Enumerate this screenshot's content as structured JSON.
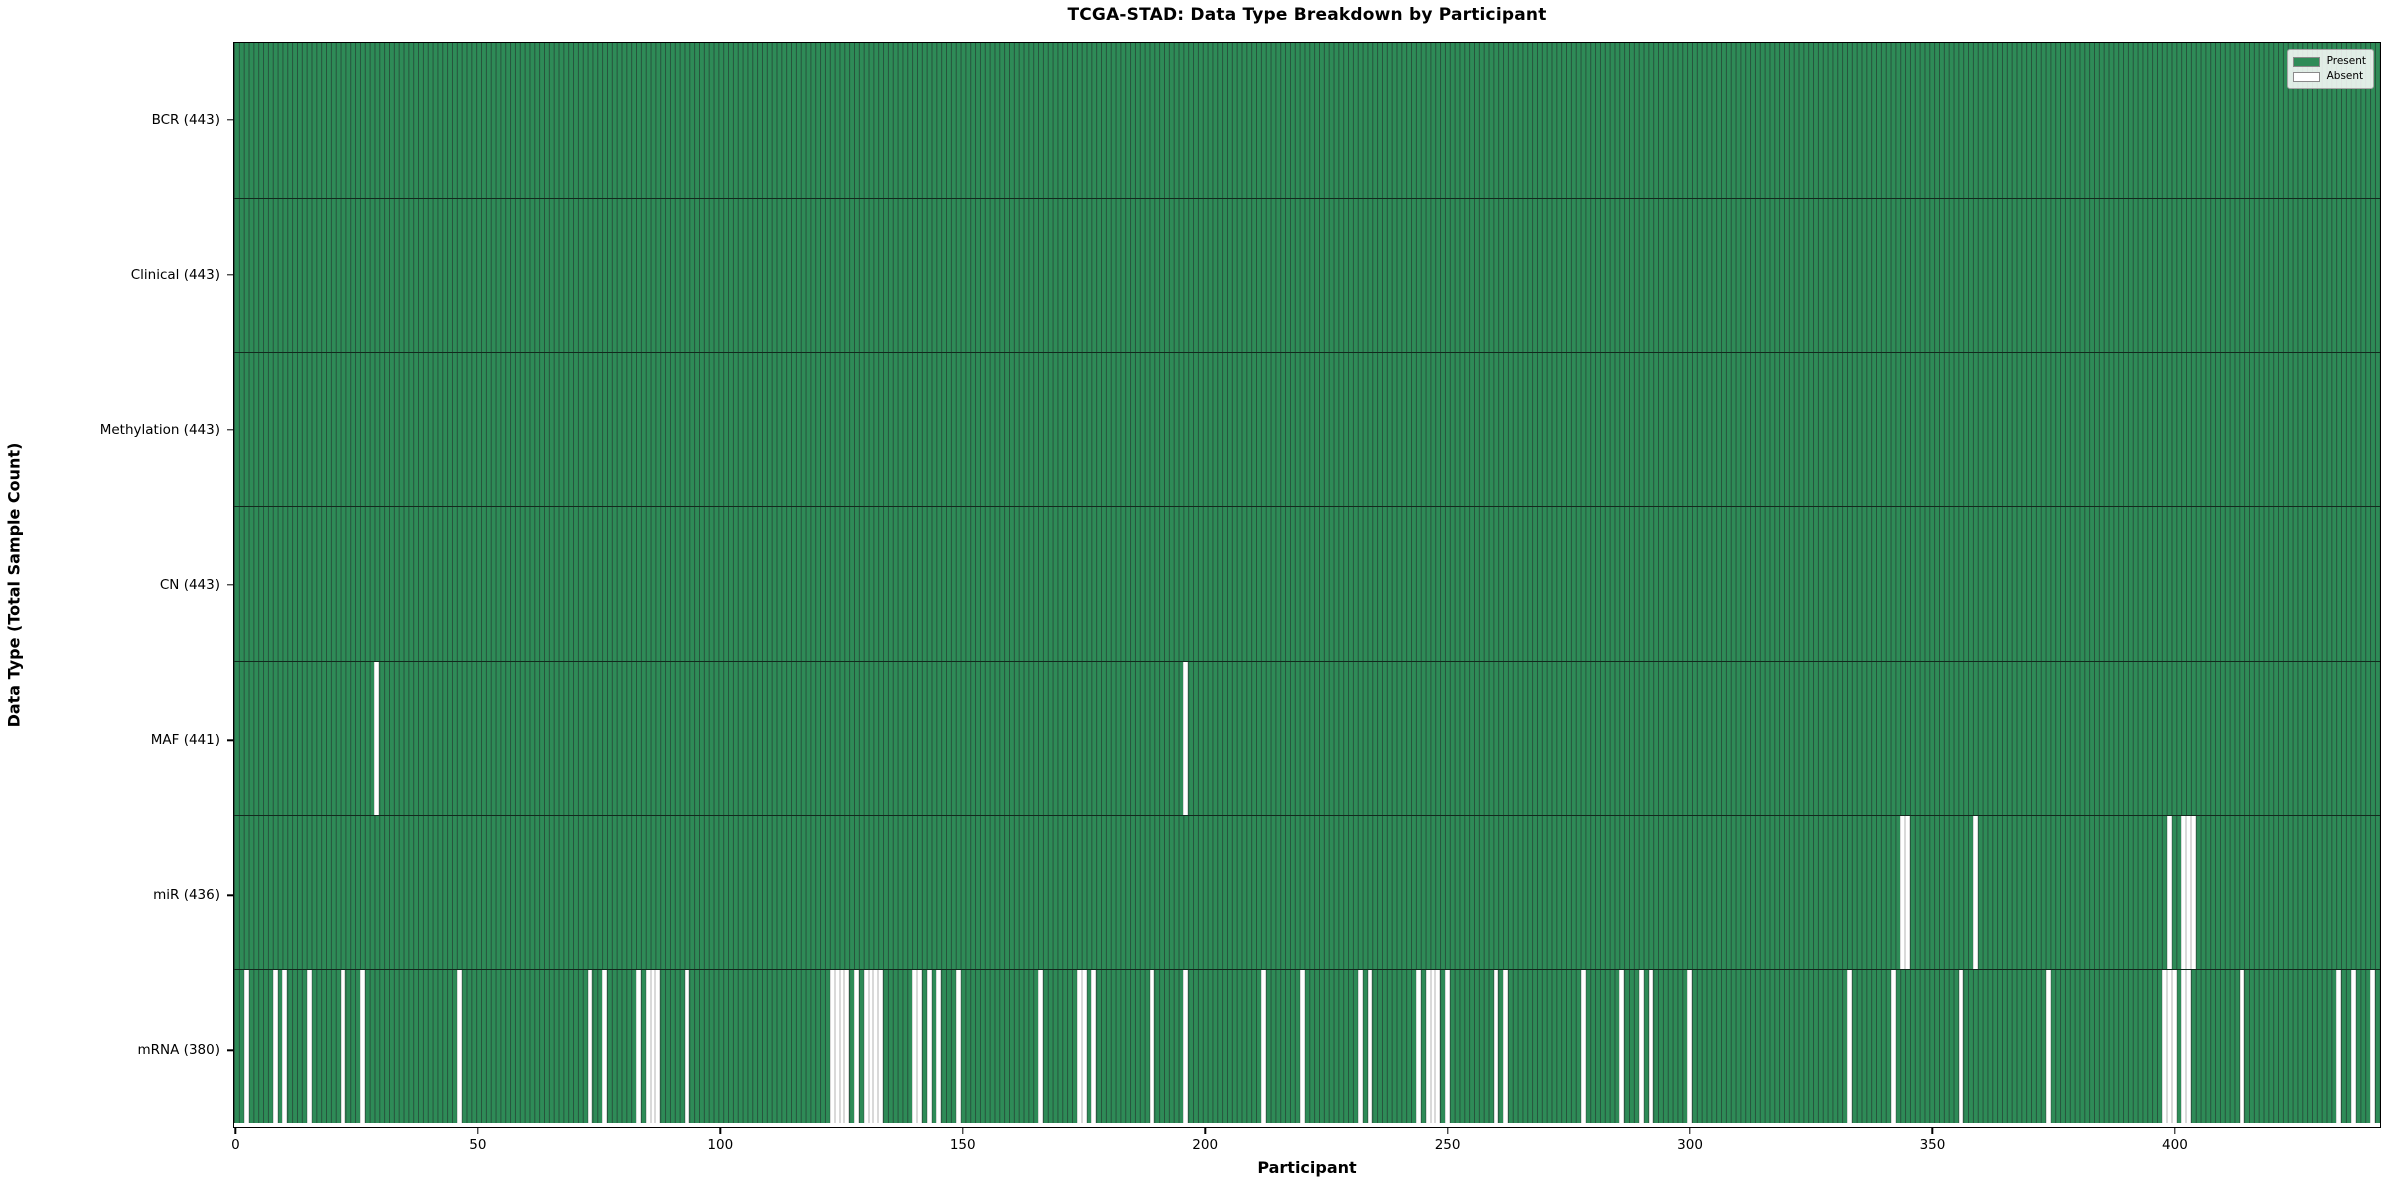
{
  "title": "TCGA-STAD: Data Type Breakdown by Participant",
  "chart_data": {
    "type": "heatmap",
    "title": "TCGA-STAD: Data Type Breakdown by Participant",
    "xlabel": "Participant",
    "ylabel": "Data Type (Total Sample Count)",
    "n_participants": 443,
    "x_ticks": [
      0,
      50,
      100,
      150,
      200,
      250,
      300,
      350,
      400
    ],
    "grid": false,
    "legend_position": "upper right",
    "legend": [
      {
        "label": "Present",
        "color": "#2e8b57"
      },
      {
        "label": "Absent",
        "color": "#ffffff"
      }
    ],
    "colors": {
      "present": "#2e8b57",
      "absent": "#ffffff",
      "bar_edge": "#26523c",
      "spine": "#000000"
    },
    "rows": [
      {
        "name": "BCR",
        "label": "BCR (443)",
        "count": 443,
        "absent": []
      },
      {
        "name": "Clinical",
        "label": "Clinical (443)",
        "count": 443,
        "absent": []
      },
      {
        "name": "Methylation",
        "label": "Methylation (443)",
        "count": 443,
        "absent": []
      },
      {
        "name": "CN",
        "label": "CN (443)",
        "count": 443,
        "absent": []
      },
      {
        "name": "MAF",
        "label": "MAF (441)",
        "count": 441,
        "absent": [
          29,
          196
        ]
      },
      {
        "name": "miR",
        "label": "miR (436)",
        "count": 436,
        "absent": [
          344,
          345,
          359,
          399,
          402,
          403,
          404
        ]
      },
      {
        "name": "mRNA",
        "label": "mRNA (380)",
        "count": 380,
        "absent": [
          2,
          8,
          10,
          15,
          22,
          26,
          46,
          73,
          76,
          83,
          85,
          86,
          87,
          93,
          123,
          124,
          125,
          126,
          128,
          130,
          131,
          132,
          133,
          140,
          141,
          143,
          145,
          149,
          166,
          174,
          175,
          177,
          189,
          196,
          212,
          220,
          232,
          234,
          244,
          246,
          247,
          248,
          250,
          260,
          262,
          278,
          286,
          290,
          292,
          300,
          333,
          342,
          356,
          374,
          398,
          399,
          400,
          402,
          403,
          414,
          434,
          437,
          441
        ]
      }
    ]
  }
}
